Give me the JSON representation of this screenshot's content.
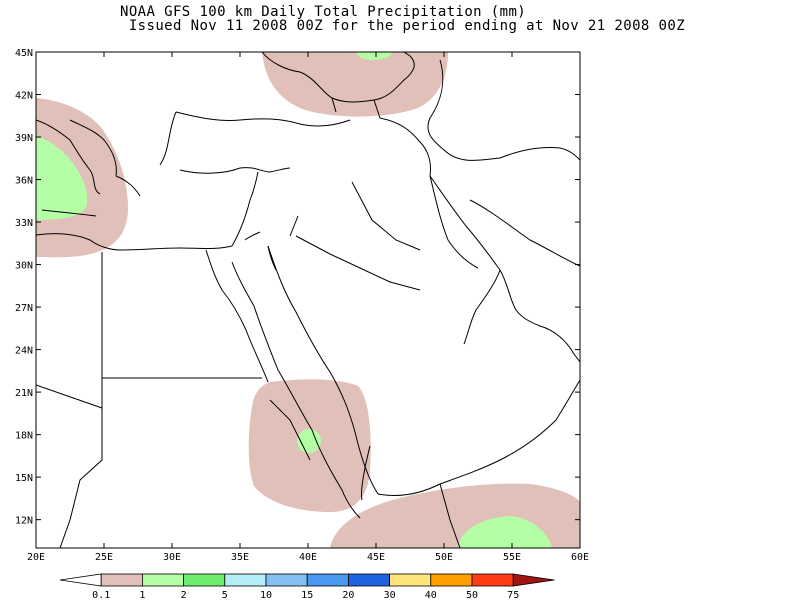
{
  "title_line1": "NOAA GFS 100 km Daily Total Precipitation (mm)",
  "title_line2": " Issued Nov 11 2008 00Z for the period ending at Nov 21 2008 00Z",
  "chart_data": {
    "type": "map",
    "lon_range": [
      20,
      60
    ],
    "lat_range": [
      10,
      45
    ],
    "lon_ticks": [
      {
        "value": 20,
        "label": "20E"
      },
      {
        "value": 25,
        "label": "25E"
      },
      {
        "value": 30,
        "label": "30E"
      },
      {
        "value": 35,
        "label": "35E"
      },
      {
        "value": 40,
        "label": "40E"
      },
      {
        "value": 45,
        "label": "45E"
      },
      {
        "value": 50,
        "label": "50E"
      },
      {
        "value": 55,
        "label": "55E"
      },
      {
        "value": 60,
        "label": "60E"
      }
    ],
    "lat_ticks": [
      {
        "value": 12,
        "label": "12N"
      },
      {
        "value": 15,
        "label": "15N"
      },
      {
        "value": 18,
        "label": "18N"
      },
      {
        "value": 21,
        "label": "21N"
      },
      {
        "value": 24,
        "label": "24N"
      },
      {
        "value": 27,
        "label": "27N"
      },
      {
        "value": 30,
        "label": "30N"
      },
      {
        "value": 33,
        "label": "33N"
      },
      {
        "value": 36,
        "label": "36N"
      },
      {
        "value": 39,
        "label": "39N"
      },
      {
        "value": 42,
        "label": "42N"
      },
      {
        "value": 45,
        "label": "45N"
      }
    ],
    "legend": {
      "boundaries": [
        "0.1",
        "1",
        "2",
        "5",
        "10",
        "15",
        "20",
        "30",
        "40",
        "50",
        "75"
      ],
      "colors": [
        "#ffffff",
        "#e0c0b8",
        "#b4ffa6",
        "#6cec6c",
        "#b4ecf8",
        "#84c0f4",
        "#4a98f0",
        "#1e64e0",
        "#ffe47c",
        "#ffa000",
        "#ff3c14",
        "#a01414"
      ]
    },
    "precip_areas": [
      {
        "region": "Black Sea",
        "category": "0.1-1",
        "color": "#e0c0b8"
      },
      {
        "region": "Black Sea core",
        "category": "1-2",
        "color": "#b4ffa6"
      },
      {
        "region": "Greece / Aegean",
        "category": "0.1-1",
        "color": "#e0c0b8"
      },
      {
        "region": "Greece / Ionian",
        "category": "1-2",
        "color": "#b4ffa6"
      },
      {
        "region": "Red Sea / Eritrea",
        "category": "0.1-1",
        "color": "#e0c0b8"
      },
      {
        "region": "Red Sea core",
        "category": "1-2",
        "color": "#b4ffa6"
      },
      {
        "region": "Gulf of Aden / Somalia",
        "category": "0.1-1",
        "color": "#e0c0b8"
      },
      {
        "region": "Arabian Sea core",
        "category": "1-2",
        "color": "#b4ffa6"
      }
    ]
  }
}
